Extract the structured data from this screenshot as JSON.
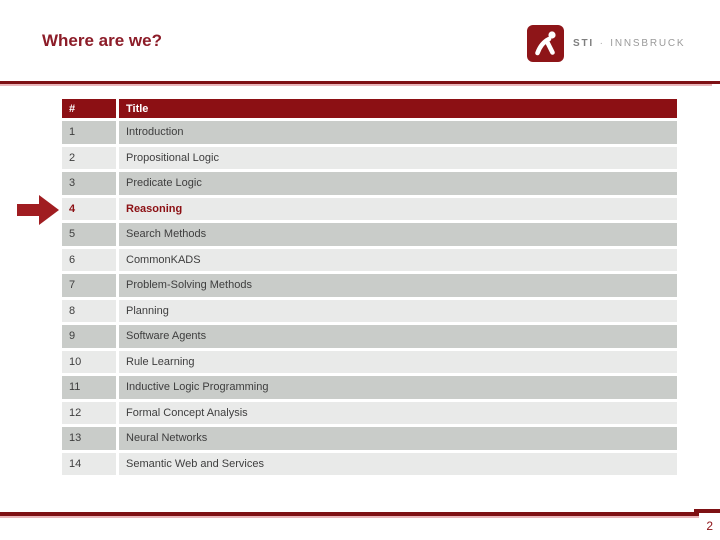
{
  "slide": {
    "title": "Where are we?",
    "page_number": "2"
  },
  "logo": {
    "brand": "STI",
    "separator": "·",
    "location": "INNSBRUCK",
    "icon": "sti-runner-icon"
  },
  "toc": {
    "columns": {
      "num": "#",
      "title": "Title"
    },
    "current_row": "4",
    "pointer_icon": "arrow-right-icon",
    "rows": [
      {
        "num": "1",
        "title": "Introduction"
      },
      {
        "num": "2",
        "title": "Propositional Logic"
      },
      {
        "num": "3",
        "title": "Predicate Logic"
      },
      {
        "num": "4",
        "title": "Reasoning",
        "current": true
      },
      {
        "num": "5",
        "title": "Search Methods"
      },
      {
        "num": "6",
        "title": "CommonKADS"
      },
      {
        "num": "7",
        "title": "Problem-Solving Methods"
      },
      {
        "num": "8",
        "title": "Planning"
      },
      {
        "num": "9",
        "title": "Software Agents"
      },
      {
        "num": "10",
        "title": "Rule Learning"
      },
      {
        "num": "11",
        "title": "Inductive Logic Programming"
      },
      {
        "num": "12",
        "title": "Formal Concept Analysis"
      },
      {
        "num": "13",
        "title": "Neural Networks"
      },
      {
        "num": "14",
        "title": "Semantic Web and Services"
      }
    ]
  },
  "colors": {
    "maroon": "#8C1014",
    "title_text": "#8C1C28",
    "arrow": "#A01D21",
    "row_dark": "#C9CCC9",
    "row_light": "#E9EAE9",
    "row_text": "#3E3E3E",
    "rule_dark": "#7E1114",
    "rule_pink": "#E9B6BA",
    "logo_gray": "#8F8F8F"
  }
}
